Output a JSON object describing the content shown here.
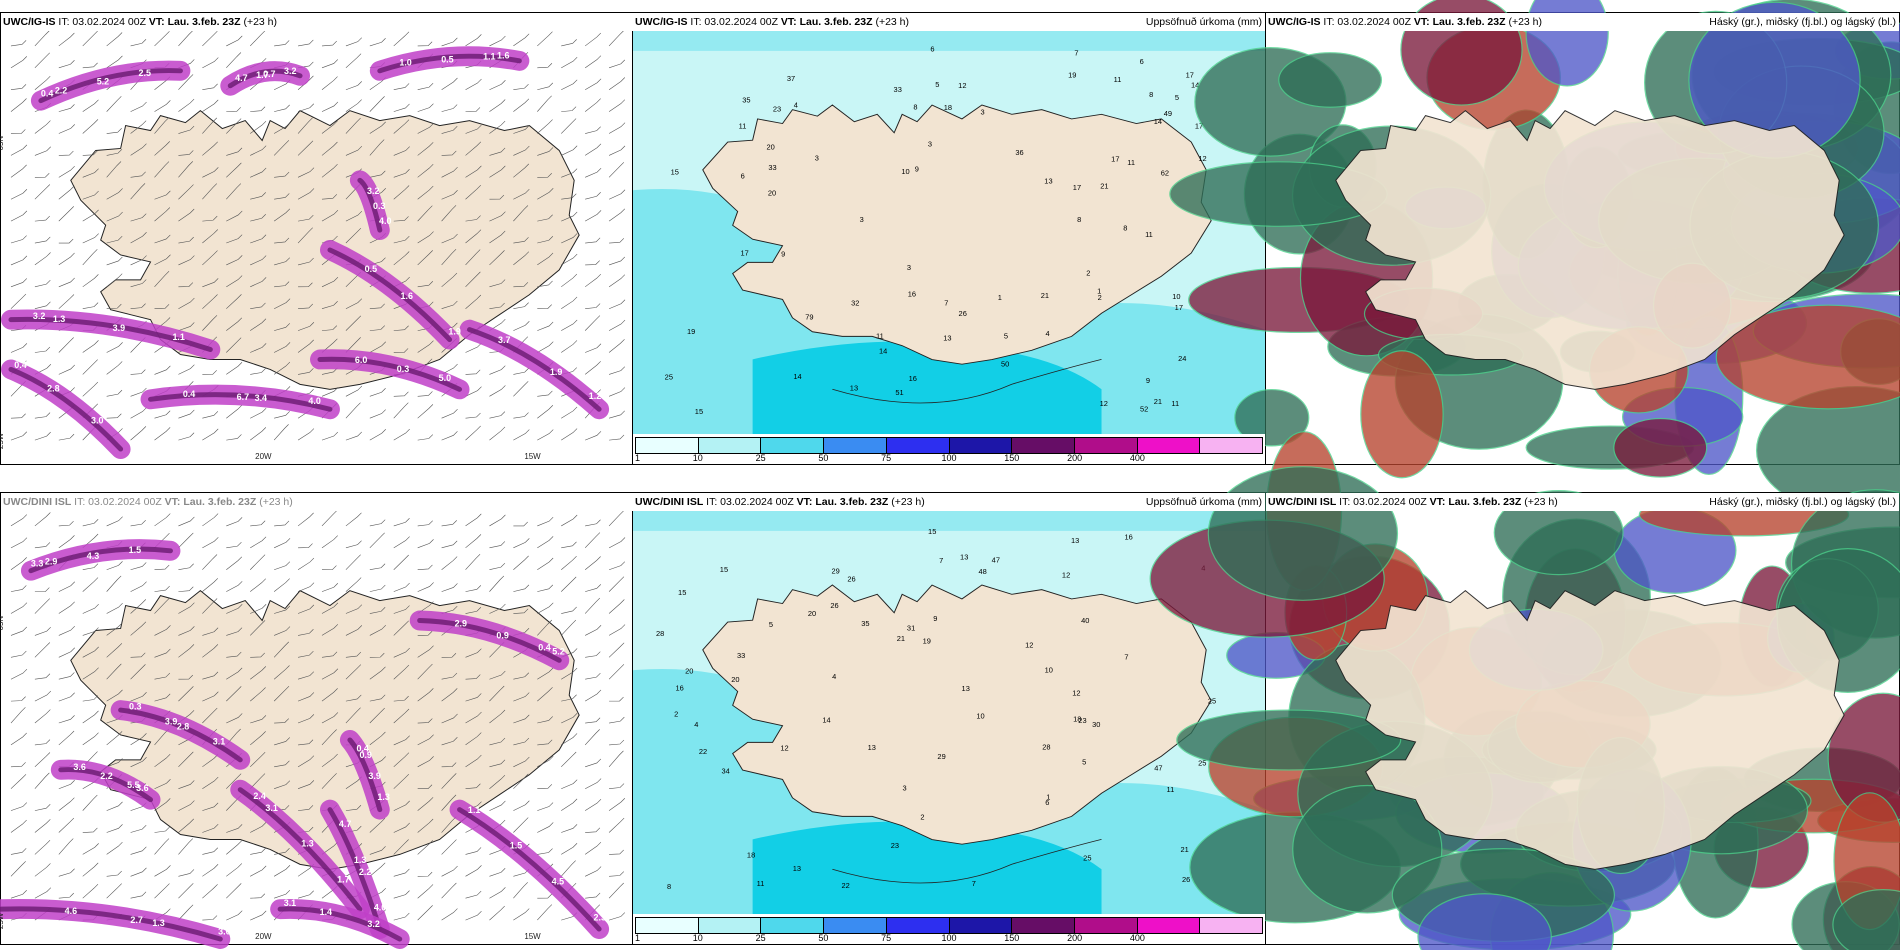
{
  "colors": {
    "land": "#f2e4d2",
    "sea_light": "#c9f6f6",
    "sea_mid": "#7fe6ef",
    "sea_deep": "#12cfe6",
    "wind_purple": "#c040c8",
    "wind_dark": "#6a1a70",
    "cloud_green": "#2f6e57",
    "cloud_red": "#b7442e",
    "cloud_maroon": "#7a1a3c",
    "cloud_blue": "#4f58c8"
  },
  "panels": [
    {
      "id": "ig-wind",
      "model": "UWC/IG-IS",
      "it": "IT: 03.02.2024 00Z",
      "vt_label": "VT:",
      "vt": "Lau. 3.feb. 23Z",
      "lead": "(+23 h)",
      "right": "",
      "kind": "wind",
      "labels": [
        "0.4",
        "1.7",
        "1.1",
        "3.2",
        "6.7",
        "5.0",
        "3.7",
        "1.6",
        "4.0",
        "2.8",
        "2.5",
        "4.7",
        "0.5",
        "1.1",
        "0.4",
        "0.3",
        "1.2",
        "0.5",
        "0.3",
        "0.4",
        "5.2",
        "3.2",
        "1.0",
        "3.9",
        "4.0",
        "6.0",
        "1.9",
        "1.9",
        "3.2",
        "3.0",
        "2.2",
        "0.7",
        "1.6",
        "1.3",
        "3.4"
      ],
      "axis_labels": [
        "65N",
        "20W",
        "15W",
        "25W"
      ]
    },
    {
      "id": "ig-precip",
      "model": "UWC/IG-IS",
      "it": "IT: 03.02.2024 00Z",
      "vt_label": "VT:",
      "vt": "Lau. 3.feb. 23Z",
      "lead": "(+23 h)",
      "right": "Uppsöfnuð úrkoma (mm)",
      "kind": "precip",
      "labels": [
        "33",
        "36",
        "51",
        "62",
        "79",
        "37",
        "17",
        "2",
        "4",
        "5",
        "3",
        "6",
        "3",
        "7",
        "5",
        "8",
        "14",
        "3",
        "6",
        "4",
        "2",
        "3",
        "11",
        "12",
        "10",
        "17",
        "17",
        "14",
        "11",
        "13",
        "12",
        "9",
        "15",
        "14",
        "8",
        "3",
        "9",
        "7",
        "11",
        "10",
        "13",
        "13",
        "11",
        "8",
        "6",
        "17",
        "15",
        "23",
        "12",
        "11",
        "11",
        "17",
        "26",
        "20",
        "5",
        "16",
        "18",
        "24",
        "49",
        "35",
        "25",
        "14",
        "16",
        "20",
        "21",
        "19",
        "17",
        "21",
        "32",
        "33",
        "52",
        "50",
        "21",
        "19",
        "9",
        "1",
        "1",
        "8"
      ]
    },
    {
      "id": "ig-cloud",
      "model": "UWC/IG-IS",
      "it": "IT: 03.02.2024 00Z",
      "vt_label": "VT:",
      "vt": "Lau. 3.feb. 23Z",
      "lead": "(+23 h)",
      "right": "Háský (gr.), miðský (fj.bl.) og lágský (bl.)",
      "kind": "cloud"
    },
    {
      "id": "dini-wind",
      "model": "UWC/DINI ISL",
      "it": "IT: 03.02.2024 00Z",
      "vt_label": "VT:",
      "vt": "Lau. 3.feb. 23Z",
      "lead": "(+23 h)",
      "right": "",
      "kind": "wind",
      "labels": [
        "3.3",
        "3.9",
        "5.5",
        "2.4",
        "1.3",
        "0.4",
        "0.4",
        "2.7",
        "2.3",
        "1.4",
        "1.5",
        "0.3",
        "2.2",
        "1.7",
        "4.7",
        "0.9",
        "1.3",
        "4.6",
        "4.5",
        "3.1",
        "4.3",
        "3.1",
        "3.6",
        "1.3",
        "4.0",
        "2.9",
        "3.9",
        "3.0",
        "1.5",
        "3.2",
        "2.9",
        "2.8",
        "3.6",
        "3.1",
        "2.2",
        "5.2",
        "0.9",
        "1.3",
        "1.1"
      ],
      "axis_labels": [
        "65N",
        "20W",
        "15W",
        "25W"
      ]
    },
    {
      "id": "dini-precip",
      "model": "UWC/DINI ISL",
      "it": "IT: 03.02.2024 00Z",
      "vt_label": "VT:",
      "vt": "Lau. 3.feb. 23Z",
      "lead": "(+23 h)",
      "right": "Uppsöfnuð úrkoma (mm)",
      "kind": "precip",
      "labels": [
        "30",
        "28",
        "47",
        "47",
        "48",
        "22",
        "12",
        "7",
        "25",
        "23",
        "25",
        "28",
        "29",
        "11",
        "15",
        "13",
        "2",
        "3",
        "4",
        "5",
        "4",
        "2",
        "1",
        "4",
        "12",
        "14",
        "16",
        "31",
        "22",
        "13",
        "19",
        "20",
        "21",
        "18",
        "15",
        "13",
        "7",
        "13",
        "10",
        "16",
        "15",
        "12",
        "9",
        "6",
        "25",
        "33",
        "26",
        "40",
        "34",
        "23",
        "21",
        "18",
        "20",
        "29",
        "35",
        "12",
        "13",
        "26",
        "26",
        "20",
        "11",
        "5",
        "10",
        "7",
        "8"
      ]
    },
    {
      "id": "dini-cloud",
      "model": "UWC/DINI ISL",
      "it": "IT: 03.02.2024 00Z",
      "vt_label": "VT:",
      "vt": "Lau. 3.feb. 23Z",
      "lead": "(+23 h)",
      "right": "Háský (gr.), miðský (fj.bl.) og lágský (bl.)",
      "kind": "cloud"
    }
  ],
  "colorbar": {
    "ticks": [
      "1",
      "10",
      "25",
      "50",
      "75",
      "100",
      "150",
      "200",
      "400"
    ],
    "colors": [
      "#e8ffff",
      "#b4f2f4",
      "#4fd8ec",
      "#3a8cf2",
      "#2d2ff0",
      "#1d16a8",
      "#660d66",
      "#b00d8a",
      "#ee10c8",
      "#f7b2f2"
    ]
  }
}
